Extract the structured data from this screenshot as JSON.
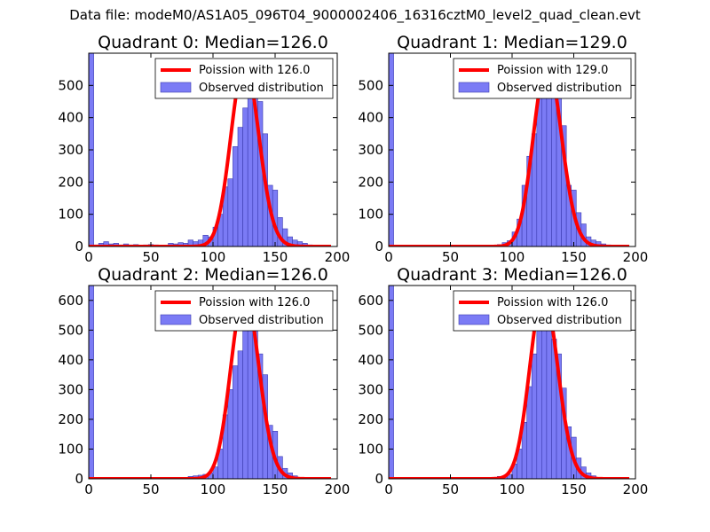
{
  "figure_title": "Data file: modeM0/AS1A05_096T04_9000002406_16316cztM0_level2_quad_clean.evt",
  "chart_data": [
    {
      "type": "bar",
      "title": "Quadrant 0: Median=126.0",
      "legend_poisson": "Poission with 126.0",
      "legend_observed": "Observed distribution",
      "lambda": 126.0,
      "xlim": [
        0,
        200
      ],
      "ylim": [
        0,
        600
      ],
      "xticks": [
        0,
        50,
        100,
        150,
        200
      ],
      "yticks": [
        0,
        100,
        200,
        300,
        400,
        500
      ],
      "bin_width": 4,
      "bins_x": [
        0,
        4,
        8,
        12,
        16,
        20,
        24,
        28,
        32,
        36,
        40,
        44,
        48,
        52,
        56,
        60,
        64,
        68,
        72,
        76,
        80,
        84,
        88,
        92,
        96,
        100,
        104,
        108,
        112,
        116,
        120,
        124,
        128,
        132,
        136,
        140,
        144,
        148,
        152,
        156,
        160,
        164,
        168,
        172,
        176,
        180,
        184
      ],
      "counts": [
        600,
        5,
        10,
        15,
        8,
        10,
        5,
        8,
        5,
        6,
        4,
        5,
        6,
        5,
        3,
        4,
        10,
        8,
        12,
        10,
        20,
        15,
        20,
        35,
        30,
        60,
        100,
        185,
        210,
        310,
        370,
        430,
        580,
        560,
        450,
        350,
        190,
        175,
        90,
        55,
        30,
        20,
        15,
        10,
        5,
        2,
        1
      ],
      "poisson_scale": 570
    },
    {
      "type": "bar",
      "title": "Quadrant 1: Median=129.0",
      "legend_poisson": "Poission with 129.0",
      "legend_observed": "Observed distribution",
      "lambda": 129.0,
      "xlim": [
        0,
        200
      ],
      "ylim": [
        0,
        600
      ],
      "xticks": [
        0,
        50,
        100,
        150,
        200
      ],
      "yticks": [
        0,
        100,
        200,
        300,
        400,
        500
      ],
      "bin_width": 4,
      "bins_x": [
        0,
        4,
        8,
        12,
        16,
        20,
        24,
        28,
        32,
        36,
        40,
        44,
        48,
        52,
        56,
        60,
        64,
        68,
        72,
        76,
        80,
        84,
        88,
        92,
        96,
        100,
        104,
        108,
        112,
        116,
        120,
        124,
        128,
        132,
        136,
        140,
        144,
        148,
        152,
        156,
        160,
        164,
        168,
        172,
        176,
        180,
        184,
        188
      ],
      "counts": [
        600,
        2,
        2,
        2,
        2,
        2,
        2,
        2,
        2,
        2,
        2,
        2,
        2,
        2,
        2,
        2,
        2,
        2,
        2,
        2,
        4,
        4,
        6,
        12,
        18,
        45,
        85,
        190,
        280,
        350,
        500,
        550,
        580,
        560,
        510,
        375,
        190,
        175,
        105,
        70,
        30,
        20,
        15,
        8,
        5,
        3,
        2,
        1
      ],
      "poisson_scale": 570
    },
    {
      "type": "bar",
      "title": "Quadrant 2: Median=126.0",
      "legend_poisson": "Poission with 126.0",
      "legend_observed": "Observed distribution",
      "lambda": 126.0,
      "xlim": [
        0,
        200
      ],
      "ylim": [
        0,
        650
      ],
      "xticks": [
        0,
        50,
        100,
        150,
        200
      ],
      "yticks": [
        0,
        100,
        200,
        300,
        400,
        500,
        600
      ],
      "bin_width": 4,
      "bins_x": [
        0,
        4,
        8,
        12,
        16,
        20,
        24,
        28,
        32,
        36,
        40,
        44,
        48,
        52,
        56,
        60,
        64,
        68,
        72,
        76,
        80,
        84,
        88,
        92,
        96,
        100,
        104,
        108,
        112,
        116,
        120,
        124,
        128,
        132,
        136,
        140,
        144,
        148,
        152,
        156,
        160,
        164,
        168,
        172,
        176,
        180,
        184
      ],
      "counts": [
        650,
        2,
        2,
        2,
        2,
        2,
        2,
        2,
        2,
        2,
        2,
        2,
        2,
        2,
        2,
        2,
        2,
        2,
        3,
        5,
        8,
        10,
        12,
        15,
        20,
        40,
        100,
        215,
        300,
        380,
        430,
        600,
        570,
        500,
        420,
        350,
        180,
        160,
        75,
        35,
        20,
        10,
        5,
        2,
        1,
        1,
        1
      ],
      "poisson_scale": 625
    },
    {
      "type": "bar",
      "title": "Quadrant 3: Median=126.0",
      "legend_poisson": "Poission with 126.0",
      "legend_observed": "Observed distribution",
      "lambda": 126.0,
      "xlim": [
        0,
        200
      ],
      "ylim": [
        0,
        650
      ],
      "xticks": [
        0,
        50,
        100,
        150,
        200
      ],
      "yticks": [
        0,
        100,
        200,
        300,
        400,
        500,
        600
      ],
      "bin_width": 4,
      "bins_x": [
        0,
        4,
        8,
        12,
        16,
        20,
        24,
        28,
        32,
        36,
        40,
        44,
        48,
        52,
        56,
        60,
        64,
        68,
        72,
        76,
        80,
        84,
        88,
        92,
        96,
        100,
        104,
        108,
        112,
        116,
        120,
        124,
        128,
        132,
        136,
        140,
        144,
        148,
        152,
        156,
        160,
        164,
        168,
        172,
        176,
        180,
        184
      ],
      "counts": [
        650,
        2,
        2,
        2,
        2,
        2,
        2,
        2,
        2,
        2,
        2,
        2,
        2,
        2,
        2,
        2,
        2,
        2,
        3,
        3,
        4,
        5,
        8,
        10,
        15,
        50,
        100,
        190,
        310,
        420,
        520,
        620,
        500,
        470,
        420,
        305,
        175,
        140,
        70,
        40,
        20,
        10,
        5,
        2,
        1,
        1,
        1
      ],
      "poisson_scale": 625
    }
  ]
}
